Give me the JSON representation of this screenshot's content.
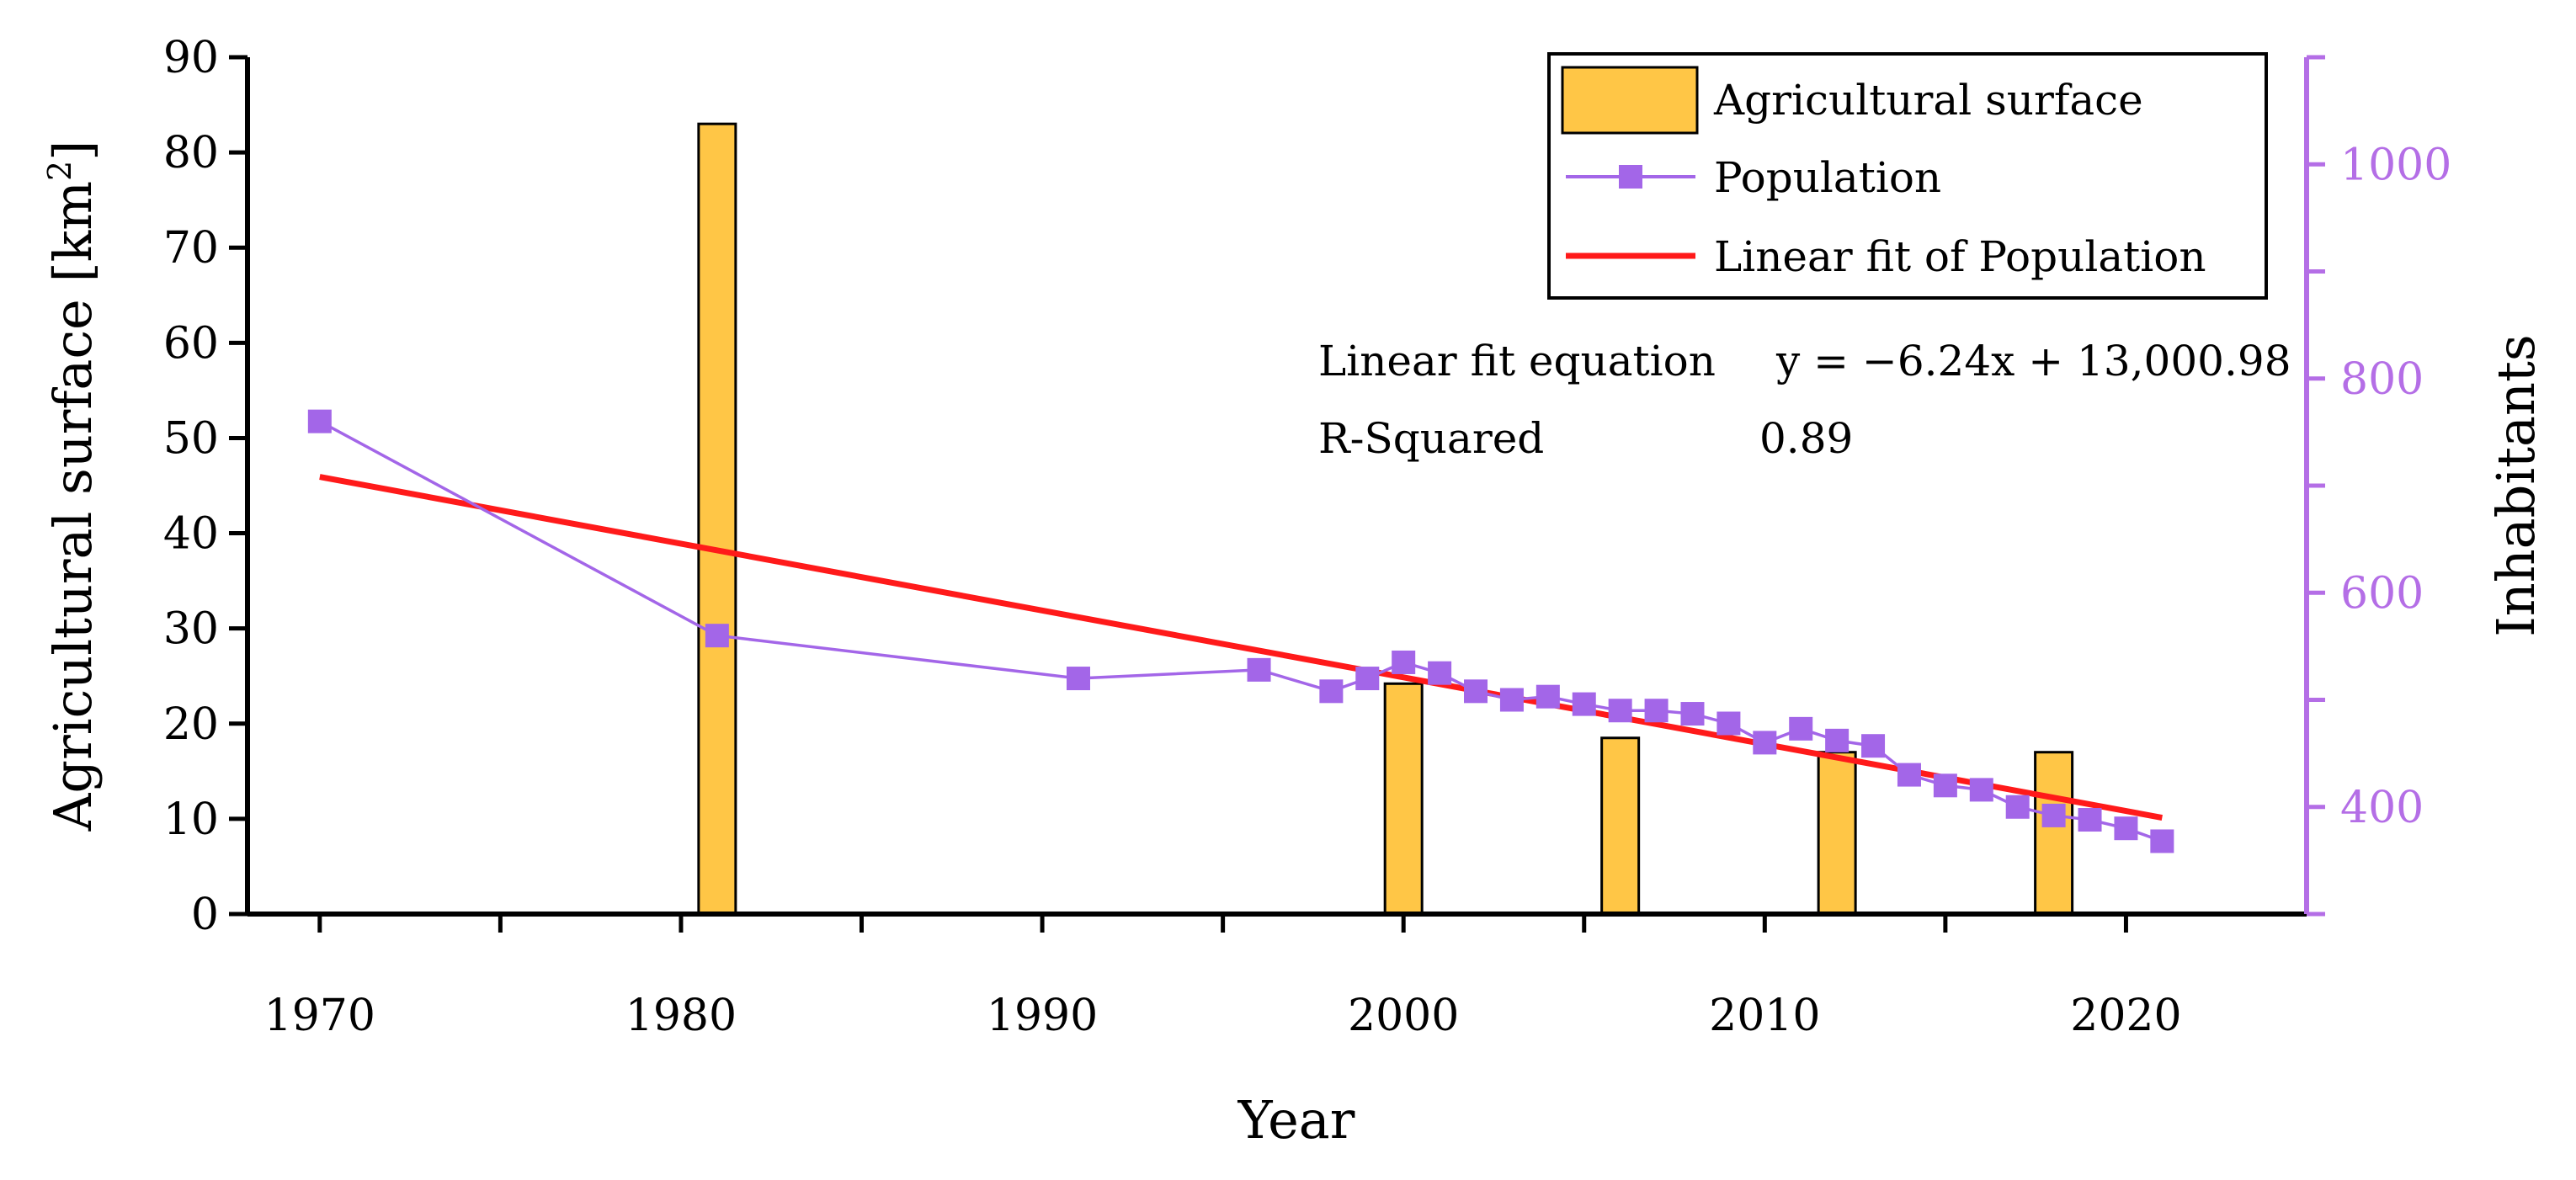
{
  "chart_data": {
    "type": "bar+line",
    "xlabel": "Year",
    "ylabel_left": "Agricultural surface [km",
    "ylabel_left_sup": "2",
    "ylabel_left_close": "]",
    "ylabel_right": "Inhabitants",
    "xlim": [
      1968,
      2025
    ],
    "ylim_left": [
      0,
      90
    ],
    "ylim_right": [
      300,
      1100
    ],
    "x_ticks": [
      1970,
      1980,
      1990,
      2000,
      2010,
      2020
    ],
    "y_ticks_left": [
      0,
      10,
      20,
      30,
      40,
      50,
      60,
      70,
      80,
      90
    ],
    "y_ticks_right": [
      400,
      600,
      800,
      1000
    ],
    "bars": {
      "name": "Agricultural surface",
      "color": "#ffc646",
      "x": [
        1981,
        2000,
        2006,
        2012,
        2018
      ],
      "values": [
        83,
        24.2,
        18.5,
        17,
        17
      ]
    },
    "population": {
      "name": "Population",
      "color": "#a366e8",
      "x": [
        1970,
        1981,
        1991,
        1996,
        1998,
        1999,
        2000,
        2001,
        2002,
        2003,
        2004,
        2005,
        2006,
        2007,
        2008,
        2009,
        2010,
        2011,
        2012,
        2013,
        2014,
        2015,
        2016,
        2017,
        2018,
        2019,
        2020,
        2021
      ],
      "values": [
        760,
        560,
        520,
        528,
        508,
        520,
        535,
        525,
        508,
        500,
        503,
        496,
        490,
        490,
        487,
        478,
        460,
        473,
        462,
        457,
        430,
        420,
        416,
        400,
        392,
        388,
        380,
        368
      ]
    },
    "fit": {
      "name": "Linear fit of Population",
      "color": "#ff1a1a",
      "slope": -6.24,
      "intercept": 13000.98,
      "x_range": [
        1970,
        2021
      ]
    },
    "annotation": {
      "eq_label": "Linear fit equation",
      "eq_value": "y = −6.24x + 13,000.98",
      "r2_label": "R-Squared",
      "r2_value": "0.89"
    }
  }
}
